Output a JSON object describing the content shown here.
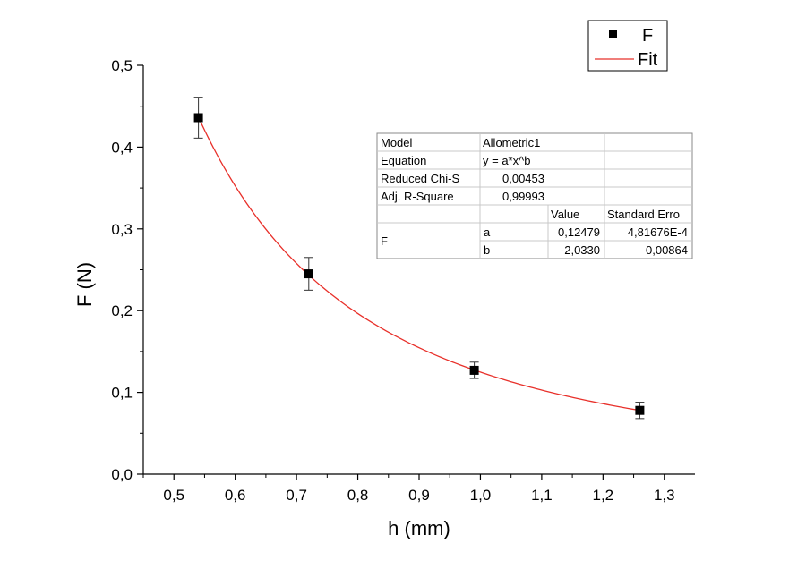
{
  "chart_data": {
    "type": "scatter",
    "title": "",
    "xlabel": "h (mm)",
    "ylabel": "F (N)",
    "xlim": [
      0.45,
      1.35
    ],
    "ylim": [
      0.0,
      0.5
    ],
    "x_ticks": [
      "0,5",
      "0,6",
      "0,7",
      "0,8",
      "0,9",
      "1,0",
      "1,1",
      "1,2",
      "1,3"
    ],
    "x_tick_values": [
      0.5,
      0.6,
      0.7,
      0.8,
      0.9,
      1.0,
      1.1,
      1.2,
      1.3
    ],
    "y_ticks": [
      "0,0",
      "0,1",
      "0,2",
      "0,3",
      "0,4",
      "0,5"
    ],
    "y_tick_values": [
      0.0,
      0.1,
      0.2,
      0.3,
      0.4,
      0.5
    ],
    "grid": false,
    "series": [
      {
        "name": "F",
        "kind": "scatter",
        "color": "#000000",
        "x": [
          0.54,
          0.72,
          0.99,
          1.26
        ],
        "y": [
          0.436,
          0.245,
          0.127,
          0.078
        ],
        "y_err": [
          0.025,
          0.02,
          0.01,
          0.01
        ]
      },
      {
        "name": "Fit",
        "kind": "line",
        "color": "#e8302a",
        "model": "allometric",
        "a": 0.12479,
        "b": -2.033,
        "x_range": [
          0.54,
          1.26
        ]
      }
    ],
    "legend": {
      "position": "top-right",
      "entries": [
        "F",
        "Fit"
      ]
    },
    "fit_table": {
      "rows": [
        [
          "Model",
          "Allometric1",
          ""
        ],
        [
          "Equation",
          "y = a*x^b",
          ""
        ],
        [
          "Reduced Chi-S",
          "0,00453",
          ""
        ],
        [
          "Adj. R-Square",
          "0,99993",
          ""
        ],
        [
          "",
          "",
          "Value",
          "Standard Erro"
        ],
        [
          "F",
          "a",
          "0,12479",
          "4,81676E-4"
        ],
        [
          "",
          "b",
          "-2,0330",
          "0,00864"
        ]
      ],
      "model_label": "Model",
      "model_value": "Allometric1",
      "equation_label": "Equation",
      "equation_value": "y = a*x^b",
      "chi_label": "Reduced Chi-S",
      "chi_value": "0,00453",
      "r2_label": "Adj. R-Square",
      "r2_value": "0,99993",
      "value_header": "Value",
      "stderr_header": "Standard Erro",
      "param_group": "F",
      "param_a": "a",
      "param_a_value": "0,12479",
      "param_a_err": "4,81676E-4",
      "param_b": "b",
      "param_b_value": "-2,0330",
      "param_b_err": "0,00864"
    }
  }
}
